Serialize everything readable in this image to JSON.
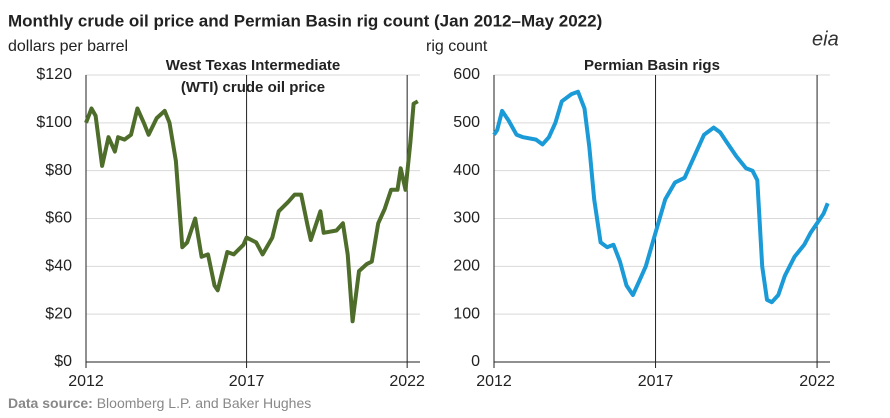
{
  "title": "Monthly crude oil price and Permian Basin rig count (Jan 2012–May 2022)",
  "source_label": "Data source:",
  "source": "Bloomberg L.P. and Baker Hughes",
  "logo": "eia",
  "chart_data": [
    {
      "type": "line",
      "title": [
        "West Texas Intermediate",
        "(WTI) crude oil price"
      ],
      "ylabel": "dollars per barrel",
      "xlim": [
        2012,
        2022.4
      ],
      "xticks": [
        2012,
        2017,
        2022
      ],
      "ylim": [
        0,
        120
      ],
      "yticks": [
        {
          "value": 0,
          "label": "$0"
        },
        {
          "value": 20,
          "label": "$20"
        },
        {
          "value": 40,
          "label": "$40"
        },
        {
          "value": 60,
          "label": "$60"
        },
        {
          "value": 80,
          "label": "$80"
        },
        {
          "value": 100,
          "label": "$100"
        },
        {
          "value": 120,
          "label": "$120"
        }
      ],
      "grid": true,
      "x": [
        2012.0,
        2012.17,
        2012.3,
        2012.5,
        2012.7,
        2012.9,
        2013.0,
        2013.2,
        2013.4,
        2013.6,
        2013.8,
        2013.95,
        2014.2,
        2014.45,
        2014.6,
        2014.8,
        2015.0,
        2015.15,
        2015.4,
        2015.6,
        2015.8,
        2016.0,
        2016.1,
        2016.4,
        2016.6,
        2016.9,
        2017.0,
        2017.3,
        2017.5,
        2017.8,
        2018.0,
        2018.3,
        2018.5,
        2018.7,
        2018.9,
        2019.0,
        2019.3,
        2019.4,
        2019.8,
        2020.0,
        2020.15,
        2020.3,
        2020.5,
        2020.75,
        2020.9,
        2021.1,
        2021.3,
        2021.5,
        2021.7,
        2021.8,
        2021.95,
        2022.1,
        2022.2,
        2022.33
      ],
      "series": [
        {
          "name": "WTI",
          "color": "#4e6d2b",
          "values": [
            100,
            106,
            103,
            82,
            94,
            88,
            94,
            93,
            95,
            106,
            100,
            95,
            102,
            105,
            100,
            84,
            48,
            50,
            60,
            44,
            45,
            32,
            30,
            46,
            45,
            49,
            52,
            50,
            45,
            52,
            63,
            67,
            70,
            70,
            57,
            51,
            63,
            54,
            55,
            58,
            45,
            17,
            38,
            41,
            42,
            58,
            64,
            72,
            72,
            81,
            72,
            92,
            108,
            109
          ]
        }
      ]
    },
    {
      "type": "line",
      "title": [
        "Permian Basin rigs"
      ],
      "ylabel": "rig count",
      "xlim": [
        2012,
        2022.4
      ],
      "xticks": [
        2012,
        2017,
        2022
      ],
      "ylim": [
        0,
        600
      ],
      "yticks": [
        0,
        100,
        200,
        300,
        400,
        500,
        600
      ],
      "grid": true,
      "x": [
        2012.0,
        2012.1,
        2012.25,
        2012.45,
        2012.7,
        2012.9,
        2013.3,
        2013.5,
        2013.7,
        2013.9,
        2014.1,
        2014.4,
        2014.6,
        2014.8,
        2014.95,
        2015.1,
        2015.3,
        2015.5,
        2015.7,
        2015.9,
        2016.1,
        2016.3,
        2016.5,
        2016.7,
        2017.0,
        2017.3,
        2017.6,
        2017.9,
        2018.2,
        2018.5,
        2018.8,
        2019.0,
        2019.2,
        2019.5,
        2019.8,
        2020.0,
        2020.15,
        2020.3,
        2020.45,
        2020.6,
        2020.8,
        2021.0,
        2021.3,
        2021.6,
        2021.8,
        2022.0,
        2022.2,
        2022.33
      ],
      "series": [
        {
          "name": "Permian Basin rigs",
          "color": "#1a9ad7",
          "values": [
            475,
            485,
            525,
            505,
            475,
            470,
            465,
            455,
            470,
            500,
            545,
            560,
            565,
            530,
            450,
            340,
            250,
            240,
            245,
            210,
            160,
            140,
            170,
            200,
            270,
            340,
            375,
            385,
            430,
            475,
            490,
            480,
            460,
            430,
            405,
            400,
            380,
            200,
            130,
            125,
            140,
            180,
            220,
            245,
            270,
            290,
            310,
            332
          ]
        }
      ]
    }
  ]
}
